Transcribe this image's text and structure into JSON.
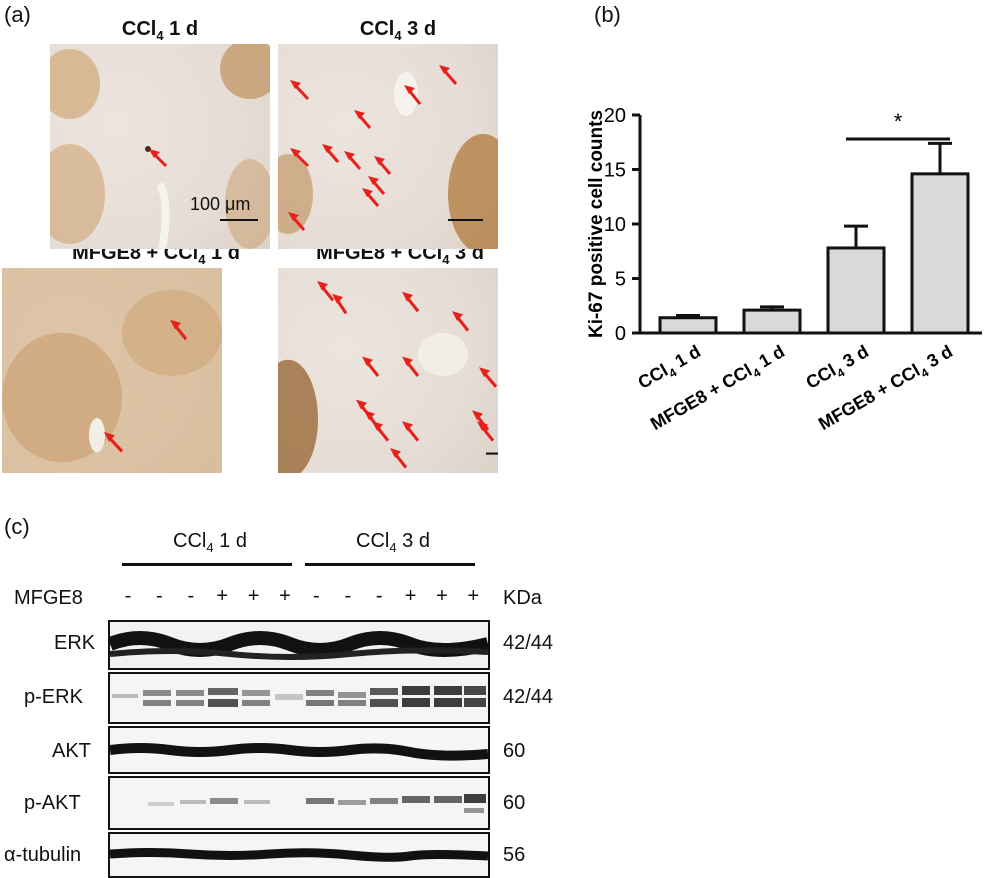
{
  "panels": {
    "a": {
      "letter": "(a)",
      "micrographs": [
        {
          "title_pre": "CCl",
          "title_sub": "4",
          "title_post": " 1 d",
          "scale_bar_label": "100 μm"
        },
        {
          "title_pre": "CCl",
          "title_sub": "4",
          "title_post": " 3 d"
        },
        {
          "title_pre": "MFGE8  + CCl",
          "title_sub": "4",
          "title_post": " 1 d"
        },
        {
          "title_pre": "MFGE8 + CCl",
          "title_sub": "4",
          "title_post": " 3 d"
        }
      ]
    },
    "b": {
      "letter": "(b)"
    },
    "c": {
      "letter": "(c)",
      "groups": [
        {
          "pre": "CCl",
          "sub": "4",
          "post": " 1 d"
        },
        {
          "pre": "CCl",
          "sub": "4",
          "post": " 3 d"
        }
      ],
      "treatment_label": "MFGE8",
      "treatment_marks": [
        "-",
        "-",
        "-",
        "+",
        "+",
        "+",
        "-",
        "-",
        "-",
        "+",
        "+",
        "+"
      ],
      "kda_header": "KDa",
      "blots": [
        {
          "name": "ERK",
          "kda": "42/44"
        },
        {
          "name": "p-ERK",
          "kda": "42/44"
        },
        {
          "name": "AKT",
          "kda": "60"
        },
        {
          "name": "p-AKT",
          "kda": "60"
        },
        {
          "name": "α-tubulin",
          "kda": "56"
        }
      ]
    }
  },
  "chart_data": {
    "type": "bar",
    "categories": [
      "CCl4 1 d",
      "MFGE8 + CCl4 1 d",
      "CCl4 3 d",
      "MFGE8 + CCl4 3 d"
    ],
    "category_labels": [
      {
        "pre": "CCl",
        "sub": "4",
        "post": " 1 d"
      },
      {
        "pre": "MFGE8 + CCl",
        "sub": "4",
        "post": " 1 d"
      },
      {
        "pre": "CCl",
        "sub": "4",
        "post": " 3 d"
      },
      {
        "pre": "MFGE8 + CCl",
        "sub": "4",
        "post": " 3 d"
      }
    ],
    "values": [
      1.4,
      2.1,
      7.8,
      14.6
    ],
    "errors": [
      0.2,
      0.3,
      2.0,
      2.8
    ],
    "ylabel": "Ki-67 positive cell counts",
    "ylim": [
      0,
      20
    ],
    "yticks": [
      0,
      5,
      10,
      15,
      20
    ],
    "significance": {
      "between": [
        2,
        3
      ],
      "label": "*"
    },
    "bar_color": "#d9d9d9",
    "grid": false
  }
}
